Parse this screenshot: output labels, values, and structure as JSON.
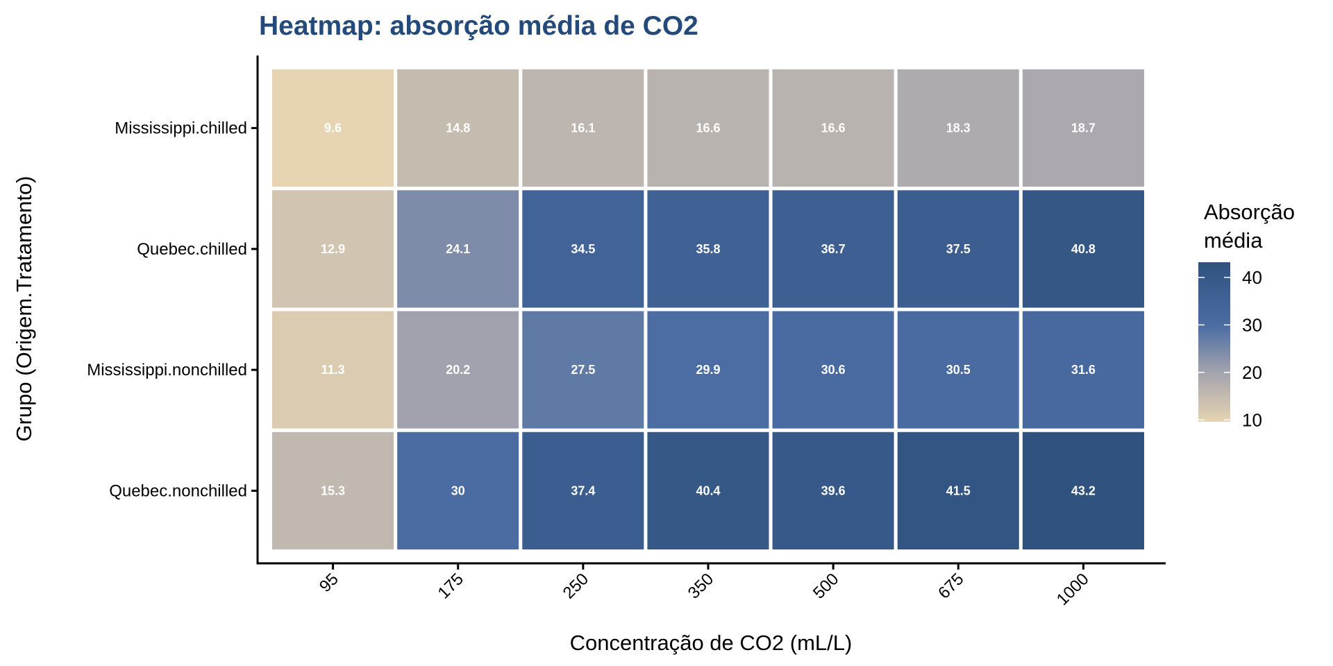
{
  "chart_data": {
    "type": "heatmap",
    "title": "Heatmap: absorção média de CO2",
    "xlabel": "Concentração de CO2 (mL/L)",
    "ylabel": "Grupo (Origem.Tratamento)",
    "x_categories": [
      "95",
      "175",
      "250",
      "350",
      "500",
      "675",
      "1000"
    ],
    "y_categories": [
      "Mississippi.chilled",
      "Quebec.chilled",
      "Mississippi.nonchilled",
      "Quebec.nonchilled"
    ],
    "values": [
      [
        9.6,
        14.8,
        16.1,
        16.6,
        16.6,
        18.3,
        18.7
      ],
      [
        12.9,
        24.1,
        34.5,
        35.8,
        36.7,
        37.5,
        40.8
      ],
      [
        11.3,
        20.2,
        27.5,
        29.9,
        30.6,
        30.5,
        31.6
      ],
      [
        15.3,
        30,
        37.4,
        40.4,
        39.6,
        41.5,
        43.2
      ]
    ],
    "value_labels": [
      [
        "9.6",
        "14.8",
        "16.1",
        "16.6",
        "16.6",
        "18.3",
        "18.7"
      ],
      [
        "12.9",
        "24.1",
        "34.5",
        "35.8",
        "36.7",
        "37.5",
        "40.8"
      ],
      [
        "11.3",
        "20.2",
        "27.5",
        "29.9",
        "30.6",
        "30.5",
        "31.6"
      ],
      [
        "15.3",
        "30",
        "37.4",
        "40.4",
        "39.6",
        "41.5",
        "43.2"
      ]
    ],
    "legend": {
      "title_lines": [
        "Absorção",
        "média"
      ],
      "ticks": [
        10,
        20,
        30,
        40
      ],
      "tick_labels": [
        "10",
        "20",
        "30",
        "40"
      ],
      "range": [
        9.6,
        43.2
      ],
      "placement": "right"
    },
    "color_scale": {
      "stops": [
        {
          "value": 9.6,
          "color": "#E6D4B2"
        },
        {
          "value": 20,
          "color": "#A3A3AE"
        },
        {
          "value": 30,
          "color": "#4A6CA3"
        },
        {
          "value": 43.2,
          "color": "#30527F"
        }
      ]
    },
    "grid": false
  },
  "colors": {
    "title": "#234A7A",
    "cell_text": "#ffffff",
    "tile_border": "#ffffff"
  }
}
